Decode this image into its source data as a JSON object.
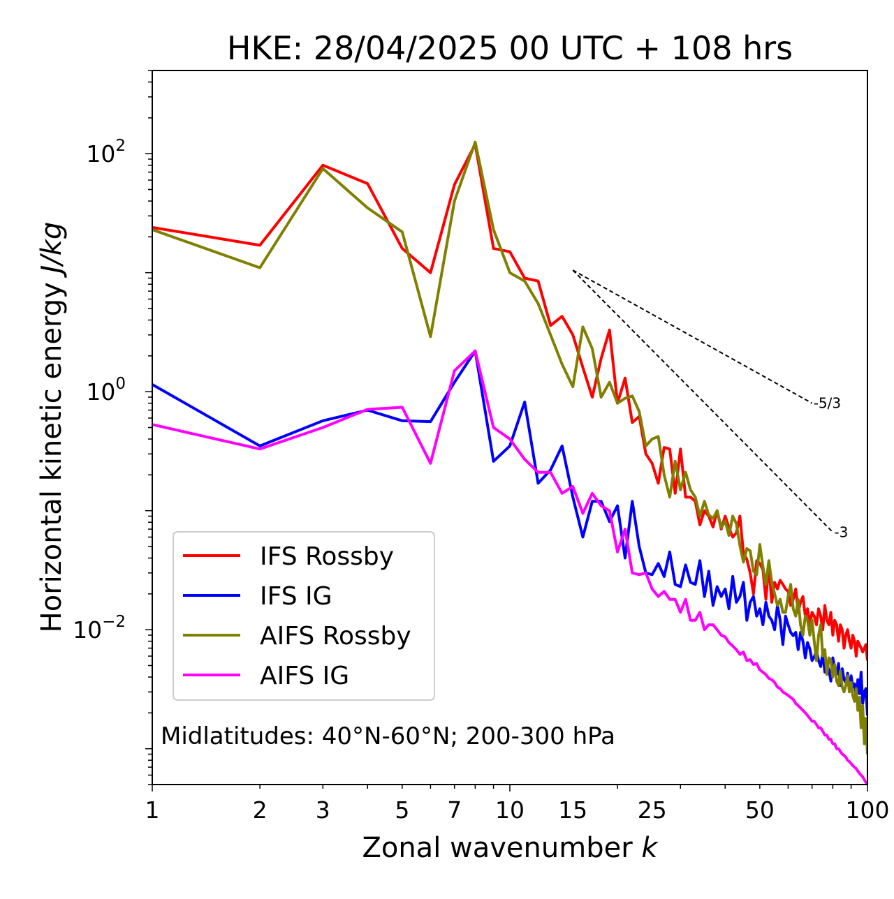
{
  "chart_data": {
    "type": "line",
    "title": "HKE: 28/04/2025 00 UTC + 108 hrs",
    "xlabel_text": "Zonal wavenumber ",
    "xlabel_var": "k",
    "ylabel_text": "Horizontal kinetic energy ",
    "ylabel_unit": "J/kg",
    "x_scale": "log",
    "y_scale": "log",
    "xlim": [
      1,
      100
    ],
    "ylim": [
      0.0005,
      500
    ],
    "grid": false,
    "legend_position": "lower-left",
    "x_tick_labels": [
      {
        "value": 1,
        "label": "1"
      },
      {
        "value": 2,
        "label": "2"
      },
      {
        "value": 3,
        "label": "3"
      },
      {
        "value": 5,
        "label": "5"
      },
      {
        "value": 7,
        "label": "7"
      },
      {
        "value": 10,
        "label": "10"
      },
      {
        "value": 15,
        "label": "15"
      },
      {
        "value": 25,
        "label": "25"
      },
      {
        "value": 50,
        "label": "50"
      },
      {
        "value": 100,
        "label": "100"
      }
    ],
    "y_tick_labels": [
      {
        "value": 100,
        "base": "10",
        "exp": "2"
      },
      {
        "value": 1,
        "base": "10",
        "exp": "0"
      },
      {
        "value": 0.01,
        "base": "10",
        "exp": "−2"
      }
    ],
    "annotation": "Midlatitudes: 40°N-60°N; 200-300 hPa",
    "reference_slopes": [
      {
        "label": "-5/3",
        "x0": 15,
        "y0": 10.5,
        "x1": 70,
        "y1": 0.8
      },
      {
        "label": "-3",
        "x0": 15,
        "y0": 10.5,
        "x1": 80,
        "y1": 0.066
      }
    ],
    "series": [
      {
        "name": "IFS Rossby",
        "color": "#ff0000",
        "x": [
          1,
          2,
          3,
          4,
          5,
          6,
          7,
          8,
          9,
          10,
          11,
          12,
          13,
          14,
          15,
          16,
          17,
          18,
          19,
          20,
          21,
          22,
          23,
          24,
          25,
          26,
          27,
          28,
          29,
          30,
          31,
          32,
          33,
          34,
          35,
          36,
          37,
          38,
          39,
          40,
          41,
          42,
          43,
          44,
          45,
          46,
          47,
          48,
          49,
          50,
          51,
          52,
          53,
          54,
          55,
          56,
          57,
          58,
          59,
          60,
          61,
          62,
          63,
          64,
          65,
          66,
          67,
          68,
          69,
          70,
          71,
          72,
          73,
          74,
          75,
          76,
          77,
          78,
          79,
          80,
          81,
          82,
          83,
          84,
          85,
          86,
          87,
          88,
          89,
          90,
          91,
          92,
          93,
          94,
          95,
          96,
          97,
          98,
          99,
          100
        ],
        "y": [
          24,
          17,
          80,
          56,
          16,
          10,
          55,
          120,
          16,
          15,
          9,
          8.5,
          3.6,
          4.3,
          3,
          1.6,
          0.9,
          1.9,
          3.3,
          0.8,
          1.3,
          0.55,
          0.62,
          0.3,
          0.25,
          0.17,
          0.34,
          0.33,
          0.14,
          0.33,
          0.13,
          0.13,
          0.12,
          0.076,
          0.1,
          0.09,
          0.073,
          0.1,
          0.07,
          0.09,
          0.072,
          0.06,
          0.065,
          0.09,
          0.044,
          0.039,
          0.03,
          0.02,
          0.038,
          0.036,
          0.032,
          0.018,
          0.035,
          0.017,
          0.025,
          0.022,
          0.026,
          0.024,
          0.022,
          0.021,
          0.016,
          0.018,
          0.022,
          0.014,
          0.017,
          0.019,
          0.013,
          0.015,
          0.011,
          0.014,
          0.013,
          0.011,
          0.015,
          0.013,
          0.01,
          0.016,
          0.012,
          0.011,
          0.014,
          0.009,
          0.012,
          0.011,
          0.008,
          0.011,
          0.01,
          0.007,
          0.009,
          0.01,
          0.008,
          0.007,
          0.009,
          0.008,
          0.006,
          0.008,
          0.0075,
          0.007,
          0.0065,
          0.007,
          0.0075,
          0.0055
        ]
      },
      {
        "name": "IFS IG",
        "color": "#0000ff",
        "x": [
          1,
          2,
          3,
          4,
          5,
          6,
          7,
          8,
          9,
          10,
          11,
          12,
          13,
          14,
          15,
          16,
          17,
          18,
          19,
          20,
          21,
          22,
          23,
          24,
          25,
          26,
          27,
          28,
          29,
          30,
          31,
          32,
          33,
          34,
          35,
          36,
          37,
          38,
          39,
          40,
          41,
          42,
          43,
          44,
          45,
          46,
          47,
          48,
          49,
          50,
          51,
          52,
          53,
          54,
          55,
          56,
          57,
          58,
          59,
          60,
          61,
          62,
          63,
          64,
          65,
          66,
          67,
          68,
          69,
          70,
          71,
          72,
          73,
          74,
          75,
          76,
          77,
          78,
          79,
          80,
          81,
          82,
          83,
          84,
          85,
          86,
          87,
          88,
          89,
          90,
          91,
          92,
          93,
          94,
          95,
          96,
          97,
          98,
          99,
          100
        ],
        "y": [
          1.15,
          0.35,
          0.57,
          0.7,
          0.57,
          0.56,
          1.2,
          2.2,
          0.26,
          0.35,
          0.82,
          0.17,
          0.22,
          0.35,
          0.13,
          0.06,
          0.12,
          0.12,
          0.081,
          0.11,
          0.04,
          0.12,
          0.05,
          0.03,
          0.029,
          0.036,
          0.028,
          0.045,
          0.024,
          0.023,
          0.035,
          0.025,
          0.024,
          0.038,
          0.019,
          0.031,
          0.016,
          0.023,
          0.019,
          0.022,
          0.015,
          0.028,
          0.017,
          0.019,
          0.025,
          0.012,
          0.017,
          0.019,
          0.013,
          0.015,
          0.011,
          0.017,
          0.013,
          0.012,
          0.01,
          0.016,
          0.012,
          0.0075,
          0.013,
          0.011,
          0.0095,
          0.0089,
          0.0095,
          0.0068,
          0.0095,
          0.008,
          0.0058,
          0.0078,
          0.0069,
          0.0055,
          0.0059,
          0.0066,
          0.0055,
          0.0049,
          0.0063,
          0.0044,
          0.0051,
          0.0046,
          0.0037,
          0.0058,
          0.0048,
          0.0042,
          0.0052,
          0.0034,
          0.0047,
          0.0038,
          0.0036,
          0.0043,
          0.0031,
          0.0041,
          0.0033,
          0.0035,
          0.0027,
          0.0038,
          0.0029,
          0.0044,
          0.0024,
          0.003,
          0.0032,
          0.0019
        ]
      },
      {
        "name": "AIFS Rossby",
        "color": "#808000",
        "x": [
          1,
          2,
          3,
          4,
          5,
          6,
          7,
          8,
          9,
          10,
          11,
          12,
          13,
          14,
          15,
          16,
          17,
          18,
          19,
          20,
          21,
          22,
          23,
          24,
          25,
          26,
          27,
          28,
          29,
          30,
          31,
          32,
          33,
          34,
          35,
          36,
          37,
          38,
          39,
          40,
          41,
          42,
          43,
          44,
          45,
          46,
          47,
          48,
          49,
          50,
          51,
          52,
          53,
          54,
          55,
          56,
          57,
          58,
          59,
          60,
          61,
          62,
          63,
          64,
          65,
          66,
          67,
          68,
          69,
          70,
          71,
          72,
          73,
          74,
          75,
          76,
          77,
          78,
          79,
          80,
          81,
          82,
          83,
          84,
          85,
          86,
          87,
          88,
          89,
          90,
          91,
          92,
          93,
          94,
          95,
          96,
          97,
          98,
          99,
          100
        ],
        "y": [
          23,
          11,
          75,
          35,
          22,
          2.9,
          40,
          125,
          23,
          10,
          8.5,
          5.5,
          3,
          1.7,
          1.1,
          3.5,
          2.3,
          0.9,
          1.2,
          0.8,
          0.88,
          0.92,
          0.68,
          0.35,
          0.4,
          0.42,
          0.2,
          0.13,
          0.26,
          0.15,
          0.21,
          0.15,
          0.13,
          0.09,
          0.12,
          0.092,
          0.086,
          0.1,
          0.072,
          0.082,
          0.062,
          0.09,
          0.078,
          0.051,
          0.037,
          0.048,
          0.046,
          0.031,
          0.029,
          0.052,
          0.034,
          0.024,
          0.038,
          0.025,
          0.02,
          0.016,
          0.018,
          0.014,
          0.014,
          0.019,
          0.024,
          0.015,
          0.013,
          0.018,
          0.011,
          0.009,
          0.013,
          0.012,
          0.009,
          0.012,
          0.008,
          0.0055,
          0.009,
          0.011,
          0.006,
          0.0068,
          0.0042,
          0.0058,
          0.0055,
          0.004,
          0.0051,
          0.0037,
          0.0034,
          0.0045,
          0.0033,
          0.003,
          0.0034,
          0.0041,
          0.003,
          0.0036,
          0.0028,
          0.0025,
          0.0032,
          0.0021,
          0.0027,
          0.0015,
          0.0023,
          0.0011,
          0.0018,
          0.0009
        ]
      },
      {
        "name": "AIFS IG",
        "color": "#ff00ff",
        "x": [
          1,
          2,
          3,
          4,
          5,
          6,
          7,
          8,
          9,
          10,
          11,
          12,
          13,
          14,
          15,
          16,
          17,
          18,
          19,
          20,
          21,
          22,
          23,
          24,
          25,
          26,
          27,
          28,
          29,
          30,
          31,
          32,
          33,
          34,
          35,
          36,
          37,
          38,
          39,
          40,
          41,
          42,
          43,
          44,
          45,
          46,
          47,
          48,
          49,
          50,
          51,
          52,
          53,
          54,
          55,
          56,
          57,
          58,
          59,
          60,
          61,
          62,
          63,
          64,
          65,
          66,
          67,
          68,
          69,
          70,
          71,
          72,
          73,
          74,
          75,
          76,
          77,
          78,
          79,
          80,
          81,
          82,
          83,
          84,
          85,
          86,
          87,
          88,
          89,
          90,
          91,
          92,
          93,
          94,
          95,
          96,
          97,
          98,
          99,
          100
        ],
        "y": [
          0.53,
          0.33,
          0.5,
          0.71,
          0.74,
          0.25,
          1.5,
          2.2,
          0.5,
          0.4,
          0.27,
          0.21,
          0.21,
          0.14,
          0.16,
          0.095,
          0.14,
          0.11,
          0.1,
          0.045,
          0.07,
          0.03,
          0.029,
          0.03,
          0.022,
          0.019,
          0.021,
          0.018,
          0.018,
          0.014,
          0.018,
          0.012,
          0.012,
          0.014,
          0.01,
          0.011,
          0.011,
          0.01,
          0.009,
          0.0087,
          0.0078,
          0.0073,
          0.0068,
          0.0062,
          0.0065,
          0.0055,
          0.0056,
          0.0051,
          0.0052,
          0.0046,
          0.0044,
          0.0042,
          0.0039,
          0.0038,
          0.0036,
          0.0033,
          0.0032,
          0.003,
          0.0029,
          0.0028,
          0.0027,
          0.0026,
          0.0024,
          0.0023,
          0.0022,
          0.0021,
          0.002,
          0.0019,
          0.0018,
          0.0017,
          0.0017,
          0.0016,
          0.0015,
          0.0015,
          0.0014,
          0.0013,
          0.0013,
          0.0012,
          0.0012,
          0.0011,
          0.0011,
          0.001,
          0.001,
          0.00095,
          0.0009,
          0.00088,
          0.00085,
          0.0008,
          0.00078,
          0.00075,
          0.00072,
          0.0007,
          0.00068,
          0.00065,
          0.00062,
          0.0006,
          0.00058,
          0.00055,
          0.00052,
          0.0005
        ]
      }
    ]
  }
}
